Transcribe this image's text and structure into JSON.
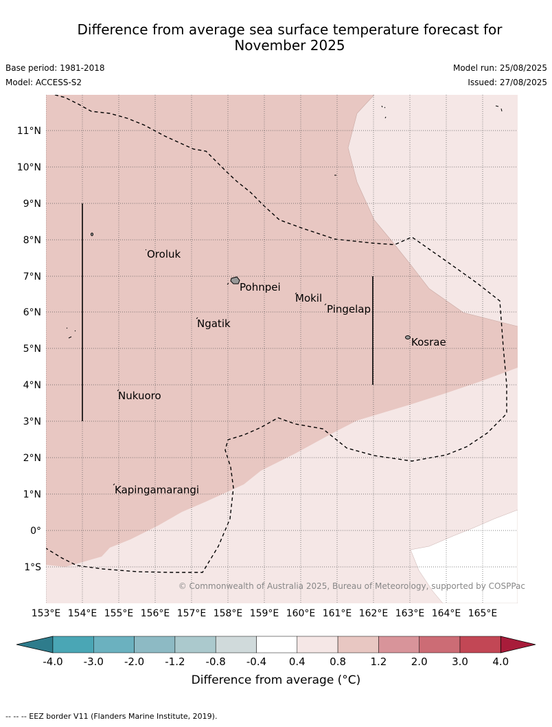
{
  "title": {
    "line1": "Difference from average sea surface temperature forecast for",
    "line2": "November 2025"
  },
  "meta": {
    "base_period": "Base period: 1981-2018",
    "model": "Model: ACCESS-S2",
    "model_run": "Model run: 25/08/2025",
    "issued": "Issued: 27/08/2025"
  },
  "axes": {
    "lon_ticks": [
      "153°E",
      "154°E",
      "155°E",
      "156°E",
      "157°E",
      "158°E",
      "159°E",
      "160°E",
      "161°E",
      "162°E",
      "163°E",
      "164°E",
      "165°E"
    ],
    "lat_ticks": [
      "11°N",
      "10°N",
      "9°N",
      "8°N",
      "7°N",
      "6°N",
      "5°N",
      "4°N",
      "3°N",
      "2°N",
      "1°N",
      "0°",
      "1°S"
    ]
  },
  "places": [
    "Oroluk",
    "Pohnpei",
    "Mokil",
    "Pingelap",
    "Ngatik",
    "Kosrae",
    "Nukuoro",
    "Kapingamarangi"
  ],
  "copyright": "© Commonwealth of Australia 2025, Bureau of Meteorology, supported by COSPPac",
  "colorbar": {
    "labels": [
      "-4.0",
      "-3.0",
      "-2.0",
      "-1.2",
      "-0.8",
      "-0.4",
      "0.4",
      "0.8",
      "1.2",
      "2.0",
      "3.0",
      "4.0"
    ],
    "colors": [
      "#2e7c8c",
      "#4aa6b5",
      "#6bb1bf",
      "#8dbac4",
      "#abc9cd",
      "#d0dadb",
      "#ffffff",
      "#f5e7e6",
      "#e8c7c2",
      "#d8949a",
      "#cc6c75",
      "#c24755",
      "#a81c3a"
    ],
    "title": "Difference from average (°C)"
  },
  "footnote": "--  --  -- EEZ border V11 (Flanders Marine Institute, 2019).",
  "fill_colors": {
    "light": "#f5e7e6",
    "medium": "#e8c7c2",
    "white": "#ffffff"
  }
}
